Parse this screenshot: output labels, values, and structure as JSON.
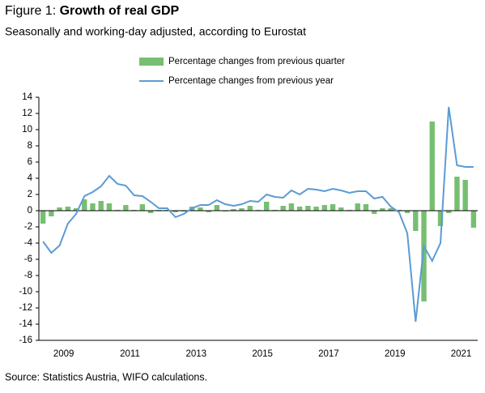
{
  "chart_data": {
    "type": "bar_line",
    "figure_label": "Figure 1:",
    "title": "Growth of real GDP",
    "subtitle": "Seasonally and working-day adjusted, according to Eurostat",
    "source": "Source: Statistics Austria, WIFO calculations.",
    "categories": [
      null,
      "2009",
      null,
      null,
      null,
      null,
      null,
      null,
      null,
      "2011",
      null,
      null,
      null,
      null,
      null,
      null,
      null,
      "2013",
      null,
      null,
      null,
      null,
      null,
      null,
      null,
      "2015",
      null,
      null,
      null,
      null,
      null,
      null,
      null,
      "2017",
      null,
      null,
      null,
      null,
      null,
      null,
      null,
      "2019",
      null,
      null,
      null,
      null,
      null,
      null,
      null,
      "2021",
      null,
      null,
      null
    ],
    "series": [
      {
        "name": "Percentage changes from previous quarter",
        "kind": "bar",
        "color": "#77bf70",
        "values": [
          -1.6,
          -0.7,
          0.4,
          0.5,
          0.3,
          1.4,
          0.9,
          1.2,
          0.9,
          0.1,
          0.7,
          0.1,
          0.8,
          -0.3,
          0.1,
          0.1,
          -0.2,
          -0.1,
          0.5,
          0.4,
          -0.2,
          0.7,
          -0.1,
          0.2,
          0.3,
          0.6,
          0.1,
          1.1,
          0.1,
          0.6,
          0.9,
          0.5,
          0.6,
          0.5,
          0.7,
          0.8,
          0.4,
          0.1,
          0.9,
          0.8,
          -0.4,
          0.3,
          0.3,
          0.1,
          -0.3,
          -2.5,
          -11.2,
          11.0,
          -1.9,
          -0.3,
          4.2,
          3.8,
          -2.1
        ]
      },
      {
        "name": "Percentage changes from previous year",
        "kind": "line",
        "color": "#5b9bd5",
        "values": [
          -3.8,
          -5.2,
          -4.3,
          -1.6,
          -0.4,
          1.8,
          2.3,
          3.0,
          4.3,
          3.3,
          3.1,
          1.9,
          1.8,
          1.1,
          0.3,
          0.3,
          -0.8,
          -0.4,
          0.3,
          0.7,
          0.7,
          1.3,
          0.8,
          0.6,
          0.8,
          1.2,
          1.1,
          2.0,
          1.7,
          1.6,
          2.5,
          2.0,
          2.7,
          2.6,
          2.4,
          2.7,
          2.5,
          2.2,
          2.4,
          2.4,
          1.5,
          1.7,
          0.5,
          -0.2,
          -2.8,
          -13.7,
          -4.4,
          -6.2,
          -4.0,
          12.8,
          5.6,
          5.4,
          5.4
        ]
      }
    ],
    "ylim": [
      -16,
      14
    ],
    "yticks": [
      -16,
      -14,
      -12,
      -10,
      -8,
      -6,
      -4,
      -2,
      0,
      2,
      4,
      6,
      8,
      10,
      12,
      14
    ]
  }
}
